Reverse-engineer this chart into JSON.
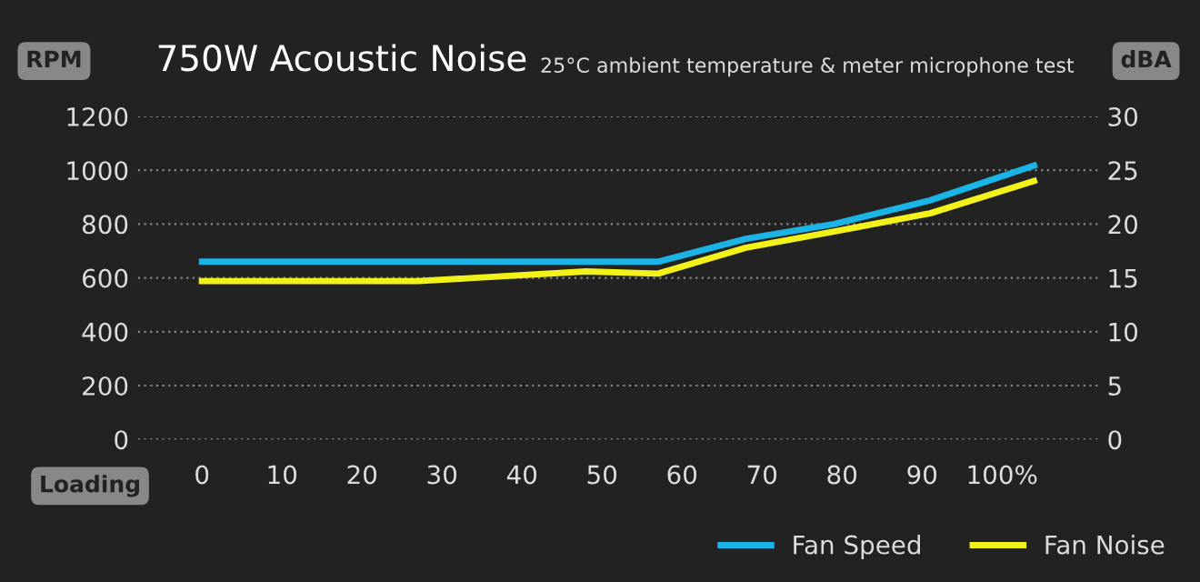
{
  "chart_data": {
    "type": "line",
    "title": "750W Acoustic Noise",
    "subtitle": "25°C ambient temperature & meter microphone test",
    "ylabel": "RPM",
    "y2label": "dBA",
    "xlabel": "Loading",
    "series": [
      {
        "name": "Fan Speed",
        "color": "#1ab4e6",
        "x": [
          0,
          57,
          68,
          79,
          91,
          104
        ],
        "values": [
          660,
          660,
          745,
          800,
          888,
          1017
        ]
      },
      {
        "name": "Fan Noise",
        "color": "#f2f21a",
        "axis": "y2",
        "x": [
          0,
          27,
          48,
          57,
          68,
          79,
          91,
          104
        ],
        "values": [
          14.7,
          14.7,
          15.6,
          15.4,
          17.8,
          19.3,
          21,
          24
        ]
      }
    ],
    "xlim": [
      -8,
      112
    ],
    "xticks": [
      0,
      10,
      20,
      30,
      40,
      50,
      60,
      70,
      80,
      90,
      {
        "value": 100,
        "label": "100%"
      }
    ],
    "ylim": [
      0,
      1200
    ],
    "yticks": [
      0,
      200,
      400,
      600,
      800,
      1000,
      1200
    ],
    "y2lim": [
      0,
      30
    ],
    "y2ticks": [
      0,
      5,
      10,
      15,
      20,
      25,
      30
    ],
    "grid": "y",
    "legend": "bottom right",
    "marker": "none",
    "line_style": "solid"
  }
}
